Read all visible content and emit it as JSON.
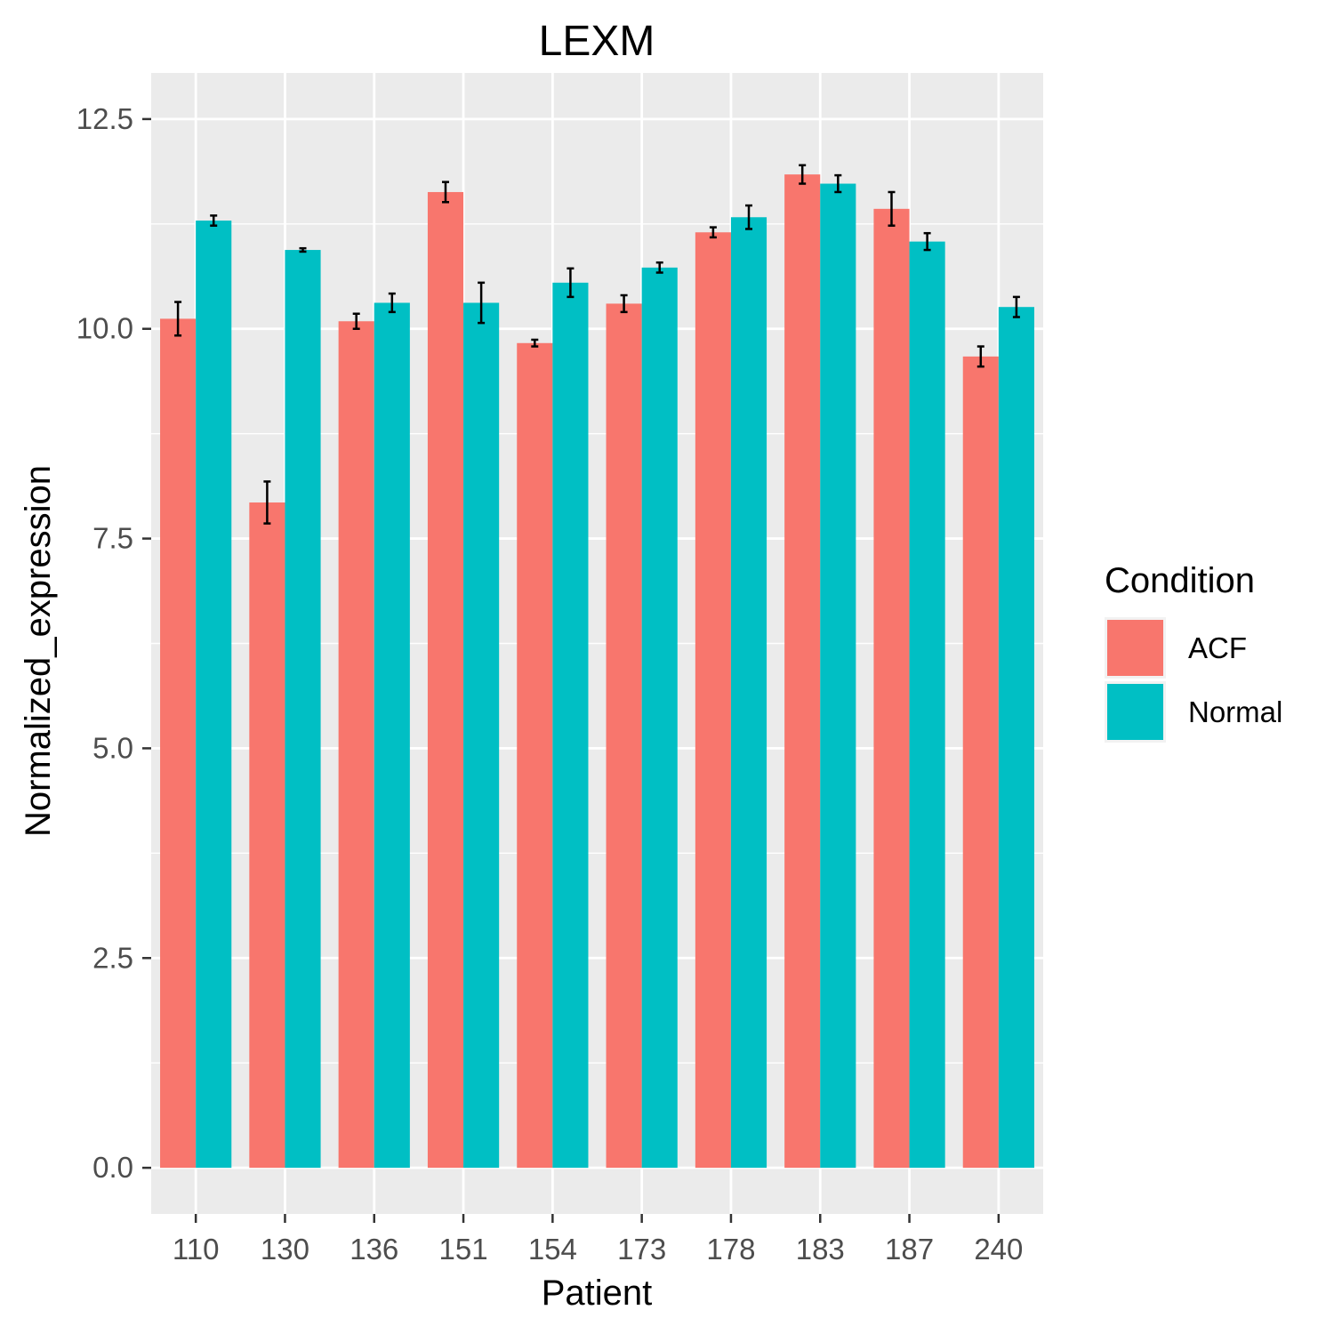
{
  "chart_data": {
    "type": "bar",
    "title": "LEXM",
    "xlabel": "Patient",
    "ylabel": "Normalized_expression",
    "categories": [
      "110",
      "130",
      "136",
      "151",
      "154",
      "173",
      "178",
      "183",
      "187",
      "240"
    ],
    "series": [
      {
        "name": "ACF",
        "color": "#F8766D",
        "values": [
          10.12,
          7.93,
          10.09,
          11.63,
          9.83,
          10.3,
          11.15,
          11.84,
          11.43,
          9.67
        ],
        "error": [
          0.2,
          0.25,
          0.09,
          0.12,
          0.04,
          0.1,
          0.06,
          0.11,
          0.2,
          0.12
        ]
      },
      {
        "name": "Normal",
        "color": "#00BFC4",
        "values": [
          11.29,
          10.94,
          10.31,
          10.31,
          10.55,
          10.73,
          11.33,
          11.73,
          11.04,
          10.26
        ],
        "error": [
          0.06,
          0.02,
          0.11,
          0.24,
          0.17,
          0.06,
          0.14,
          0.1,
          0.1,
          0.12
        ]
      }
    ],
    "ylim": [
      -0.55,
      13.05
    ],
    "yticks": [
      "0.0",
      "2.5",
      "5.0",
      "7.5",
      "10.0",
      "12.5"
    ],
    "legend": {
      "title": "Condition",
      "position": "right"
    },
    "grid": true,
    "background": "#EBEBEB"
  }
}
